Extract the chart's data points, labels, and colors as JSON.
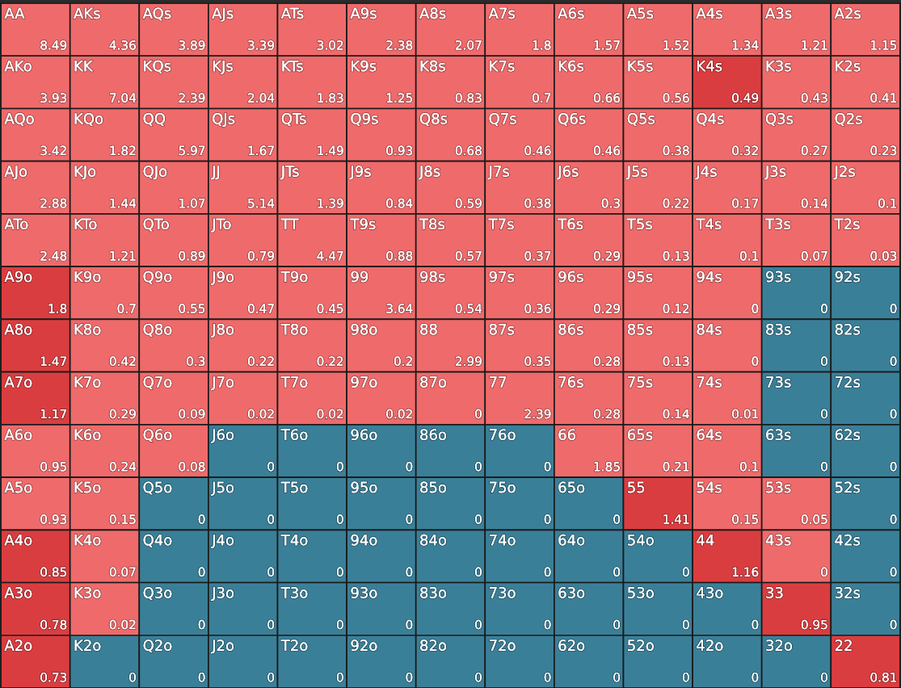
{
  "chart_data": {
    "type": "heatmap",
    "data_labels": true,
    "categories": [
      null,
      null,
      null,
      null,
      null,
      null,
      null,
      null,
      null,
      null,
      null,
      null,
      null
    ],
    "y_categories": [
      null,
      null,
      null,
      null,
      null,
      null,
      null,
      null,
      null,
      null,
      null,
      null,
      null
    ],
    "cells": [
      [
        8.49,
        4.36,
        3.89,
        3.39,
        3.02,
        2.38,
        2.07,
        1.8,
        1.57,
        1.52,
        1.34,
        1.21,
        1.15
      ],
      [
        3.93,
        7.04,
        2.39,
        2.04,
        1.83,
        1.25,
        0.83,
        0.7,
        0.66,
        0.56,
        0.49,
        0.43,
        0.41
      ],
      [
        3.42,
        1.82,
        5.97,
        1.67,
        1.49,
        0.93,
        0.68,
        0.46,
        0.46,
        0.38,
        0.32,
        0.27,
        0.23
      ],
      [
        2.88,
        1.44,
        1.07,
        5.14,
        1.39,
        0.84,
        0.59,
        0.38,
        0.3,
        0.22,
        0.17,
        0.14,
        0.1
      ],
      [
        2.48,
        1.21,
        0.89,
        0.79,
        4.47,
        0.88,
        0.57,
        0.37,
        0.29,
        0.13,
        0.1,
        0.07,
        0.03
      ],
      [
        1.8,
        0.7,
        0.55,
        0.47,
        0.45,
        3.64,
        0.54,
        0.36,
        0.29,
        0.12,
        0,
        0,
        0
      ],
      [
        1.47,
        0.42,
        0.3,
        0.22,
        0.22,
        0.2,
        2.99,
        0.35,
        0.28,
        0.13,
        0,
        0,
        0
      ],
      [
        1.17,
        0.29,
        0.09,
        0.02,
        0.02,
        0.02,
        0,
        2.39,
        0.28,
        0.14,
        0.01,
        0,
        0
      ],
      [
        0.95,
        0.24,
        0.08,
        0,
        0,
        0,
        0,
        0,
        1.85,
        0.21,
        0.1,
        0,
        0
      ],
      [
        0.93,
        0.15,
        0,
        0,
        0,
        0,
        0,
        0,
        0,
        1.41,
        0.15,
        0.05,
        0
      ],
      [
        0.85,
        0.07,
        0,
        0,
        0,
        0,
        0,
        0,
        0,
        0,
        1.16,
        0,
        0
      ],
      [
        0.78,
        0.02,
        0,
        0,
        0,
        0,
        0,
        0,
        0,
        0,
        0,
        0.95,
        0
      ],
      [
        0.73,
        0,
        0,
        0,
        0,
        0,
        0,
        0,
        0,
        0,
        0,
        0,
        0.81
      ]
    ],
    "annotations": [
      "AA",
      "AKs",
      "AQs",
      "AJs",
      "ATs",
      "A9s",
      "A8s",
      "A7s",
      "A6s",
      "A5s",
      "A4s",
      "A3s",
      "A2s",
      "AKo",
      "KK",
      "KQs",
      "KJs",
      "KTs",
      "K9s",
      "K8s",
      "K7s",
      "K6s",
      "K5s",
      "K4s",
      "K3s",
      "K2s",
      "AQo",
      "KQo",
      "QQ",
      "QJs",
      "QTs",
      "Q9s",
      "Q8s",
      "Q7s",
      "Q6s",
      "Q5s",
      "Q4s",
      "Q3s",
      "Q2s",
      "AJo",
      "KJo",
      "QJo",
      "JJ",
      "JTs",
      "J9s",
      "J8s",
      "J7s",
      "J6s",
      "J5s",
      "J4s",
      "J3s",
      "J2s",
      "ATo",
      "KTo",
      "QTo",
      "JTo",
      "TT",
      "T9s",
      "T8s",
      "T7s",
      "T6s",
      "T5s",
      "T4s",
      "T3s",
      "T2s",
      "A9o",
      "K9o",
      "Q9o",
      "J9o",
      "T9o",
      "99",
      "98s",
      "97s",
      "96s",
      "95s",
      "94s",
      "93s",
      "92s",
      "A8o",
      "K8o",
      "Q8o",
      "J8o",
      "T8o",
      "98o",
      "88",
      "87s",
      "86s",
      "85s",
      "84s",
      "83s",
      "82s",
      "A7o",
      "K7o",
      "Q7o",
      "J7o",
      "T7o",
      "97o",
      "87o",
      "77",
      "76s",
      "75s",
      "74s",
      "73s",
      "72s",
      "A6o",
      "K6o",
      "Q6o",
      "J6o",
      "T6o",
      "96o",
      "86o",
      "76o",
      "66",
      "65s",
      "64s",
      "63s",
      "62s",
      "A5o",
      "K5o",
      "Q5o",
      "J5o",
      "T5o",
      "95o",
      "85o",
      "75o",
      "65o",
      "55",
      "54s",
      "53s",
      "52s",
      "A4o",
      "K4o",
      "Q4o",
      "J4o",
      "T4o",
      "94o",
      "84o",
      "74o",
      "64o",
      "54o",
      "44",
      "43s",
      "42s",
      "A3o",
      "K3o",
      "Q3o",
      "J3o",
      "T3o",
      "93o",
      "83o",
      "73o",
      "63o",
      "53o",
      "43o",
      "33",
      "32s",
      "A2o",
      "K2o",
      "Q2o",
      "J2o",
      "T2o",
      "92o",
      "82o",
      "72o",
      "62o",
      "52o",
      "42o",
      "32o",
      "22"
    ],
    "colors": [
      [
        "#ef6a6b",
        "#ef6a6b",
        "#ef6a6b",
        "#ef6a6b",
        "#ef6a6b",
        "#ef6a6b",
        "#ef6a6b",
        "#ef6a6b",
        "#ef6a6b",
        "#ef6a6b",
        "#ef6a6b",
        "#ef6a6b",
        "#ef6a6b"
      ],
      [
        "#ef6a6b",
        "#ef6a6b",
        "#ef6a6b",
        "#ef6a6b",
        "#ef6a6b",
        "#ef6a6b",
        "#ef6a6b",
        "#ef6a6b",
        "#ef6a6b",
        "#ef6a6b",
        "#da3d40",
        "#ef6a6b",
        "#ef6a6b"
      ],
      [
        "#ef6a6b",
        "#ef6a6b",
        "#ef6a6b",
        "#ef6a6b",
        "#ef6a6b",
        "#ef6a6b",
        "#ef6a6b",
        "#ef6a6b",
        "#ef6a6b",
        "#ef6a6b",
        "#ef6a6b",
        "#ef6a6b",
        "#ef6a6b"
      ],
      [
        "#ef6a6b",
        "#ef6a6b",
        "#ef6a6b",
        "#ef6a6b",
        "#ef6a6b",
        "#ef6a6b",
        "#ef6a6b",
        "#ef6a6b",
        "#ef6a6b",
        "#ef6a6b",
        "#ef6a6b",
        "#ef6a6b",
        "#ef6a6b"
      ],
      [
        "#ef6a6b",
        "#ef6a6b",
        "#ef6a6b",
        "#ef6a6b",
        "#ef6a6b",
        "#ef6a6b",
        "#ef6a6b",
        "#ef6a6b",
        "#ef6a6b",
        "#ef6a6b",
        "#ef6a6b",
        "#ef6a6b",
        "#ef6a6b"
      ],
      [
        "#da3d40",
        "#ef6a6b",
        "#ef6a6b",
        "#ef6a6b",
        "#ef6a6b",
        "#ef6a6b",
        "#ef6a6b",
        "#ef6a6b",
        "#ef6a6b",
        "#ef6a6b",
        "#ef6a6b",
        "#3a7f98",
        "#3a7f98"
      ],
      [
        "#da3d40",
        "#ef6a6b",
        "#ef6a6b",
        "#ef6a6b",
        "#ef6a6b",
        "#ef6a6b",
        "#ef6a6b",
        "#ef6a6b",
        "#ef6a6b",
        "#ef6a6b",
        "#ef6a6b",
        "#3a7f98",
        "#3a7f98"
      ],
      [
        "#da3d40",
        "#ef6a6b",
        "#ef6a6b",
        "#ef6a6b",
        "#ef6a6b",
        "#ef6a6b",
        "#ef6a6b",
        "#ef6a6b",
        "#ef6a6b",
        "#ef6a6b",
        "#ef6a6b",
        "#3a7f98",
        "#3a7f98"
      ],
      [
        "#ef6a6b",
        "#ef6a6b",
        "#ef6a6b",
        "#3a7f98",
        "#3a7f98",
        "#3a7f98",
        "#3a7f98",
        "#3a7f98",
        "#ef6a6b",
        "#ef6a6b",
        "#ef6a6b",
        "#3a7f98",
        "#3a7f98"
      ],
      [
        "#ef6a6b",
        "#ef6a6b",
        "#3a7f98",
        "#3a7f98",
        "#3a7f98",
        "#3a7f98",
        "#3a7f98",
        "#3a7f98",
        "#3a7f98",
        "#da3d40",
        "#ef6a6b",
        "#ef6a6b",
        "#3a7f98"
      ],
      [
        "#da3d40",
        "#ef6a6b",
        "#3a7f98",
        "#3a7f98",
        "#3a7f98",
        "#3a7f98",
        "#3a7f98",
        "#3a7f98",
        "#3a7f98",
        "#3a7f98",
        "#da3d40",
        "#ef6a6b",
        "#3a7f98"
      ],
      [
        "#da3d40",
        "#ef6a6b",
        "#3a7f98",
        "#3a7f98",
        "#3a7f98",
        "#3a7f98",
        "#3a7f98",
        "#3a7f98",
        "#3a7f98",
        "#3a7f98",
        "#3a7f98",
        "#da3d40",
        "#3a7f98"
      ],
      [
        "#da3d40",
        "#3a7f98",
        "#3a7f98",
        "#3a7f98",
        "#3a7f98",
        "#3a7f98",
        "#3a7f98",
        "#3a7f98",
        "#3a7f98",
        "#3a7f98",
        "#3a7f98",
        "#3a7f98",
        "#da3d40"
      ]
    ]
  }
}
